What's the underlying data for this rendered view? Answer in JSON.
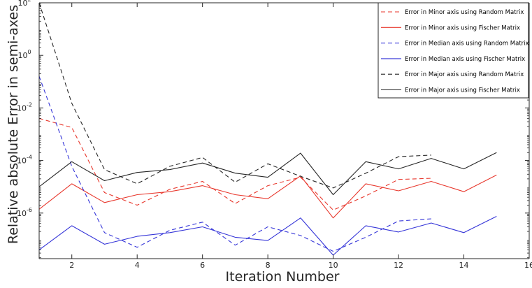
{
  "chart_data": {
    "type": "line",
    "title": "",
    "xlabel": "Iteration Number",
    "ylabel": "Relative absolute Error in semi-axes",
    "xlim": [
      1,
      16
    ],
    "ylim_log10": [
      -8,
      2
    ],
    "yscale": "log",
    "xticks": [
      "2",
      "4",
      "6",
      "8",
      "10",
      "12",
      "14",
      "16"
    ],
    "yticks": [
      {
        "base": "10",
        "exp": "2"
      },
      {
        "base": "10",
        "exp": "0"
      },
      {
        "base": "10",
        "exp": "-2"
      },
      {
        "base": "10",
        "exp": "-4"
      },
      {
        "base": "10",
        "exp": "-6"
      }
    ],
    "legend_placement": "top-right",
    "series": [
      {
        "name": "Error in Minor axis using Random Matrix",
        "color": "#e8372c",
        "dashed": true,
        "x": [
          1,
          2,
          3,
          4,
          5,
          6,
          7,
          8,
          9,
          10,
          11,
          12,
          13
        ],
        "y": [
          0.004,
          0.0018,
          6e-06,
          2e-06,
          8e-06,
          1.6e-05,
          2.3e-06,
          1.1e-05,
          2.3e-05,
          1.3e-06,
          4.5e-06,
          1.9e-05,
          2.1e-05
        ]
      },
      {
        "name": "Error in Minor axis using Fischer Matrix",
        "color": "#e8372c",
        "dashed": false,
        "x": [
          1,
          2,
          3,
          4,
          5,
          6,
          7,
          8,
          9,
          10,
          11,
          12,
          13,
          14,
          15
        ],
        "y": [
          1.4e-06,
          1.3e-05,
          2.5e-06,
          5e-06,
          6.5e-06,
          1.1e-05,
          5e-06,
          3.5e-06,
          2.6e-05,
          6.5e-07,
          1.3e-05,
          7e-06,
          1.6e-05,
          6.5e-06,
          2.8e-05
        ]
      },
      {
        "name": "Error in Median axis using Random Matrix",
        "color": "#3434d8",
        "dashed": true,
        "x": [
          1,
          2,
          3,
          4,
          5,
          6,
          7,
          8,
          9,
          10,
          11,
          12,
          13
        ],
        "y": [
          0.16,
          6e-05,
          1.8e-07,
          5e-08,
          2.2e-07,
          4.5e-07,
          6e-08,
          3e-07,
          1.4e-07,
          3.5e-08,
          1.2e-07,
          5e-07,
          6e-07
        ]
      },
      {
        "name": "Error in Median axis using Fischer Matrix",
        "color": "#3434d8",
        "dashed": false,
        "x": [
          1,
          2,
          3,
          4,
          5,
          6,
          7,
          8,
          9,
          10,
          11,
          12,
          13,
          14,
          15
        ],
        "y": [
          4e-08,
          3.3e-07,
          6.5e-08,
          1.3e-07,
          1.8e-07,
          3e-07,
          1.2e-07,
          9e-08,
          6.5e-07,
          2.5e-08,
          3.3e-07,
          1.9e-07,
          4.2e-07,
          1.8e-07,
          7.5e-07
        ]
      },
      {
        "name": "Error in Major axis using Random Matrix",
        "color": "#262626",
        "dashed": true,
        "x": [
          1,
          2,
          3,
          4,
          5,
          6,
          7,
          8,
          9,
          10,
          11,
          12,
          13
        ],
        "y": [
          100,
          0.015,
          4.5e-05,
          1.3e-05,
          6e-05,
          0.00013,
          1.5e-05,
          7.5e-05,
          2.5e-05,
          9e-06,
          3.3e-05,
          0.00014,
          0.00016
        ]
      },
      {
        "name": "Error in Major axis using Fischer Matrix",
        "color": "#262626",
        "dashed": false,
        "x": [
          1,
          2,
          3,
          4,
          5,
          6,
          7,
          8,
          9,
          10,
          11,
          12,
          13,
          14,
          15
        ],
        "y": [
          1e-05,
          9e-05,
          1.7e-05,
          3.5e-05,
          4.5e-05,
          8e-05,
          3.3e-05,
          2.3e-05,
          0.00019,
          5e-06,
          9e-05,
          4.8e-05,
          0.00012,
          4.8e-05,
          0.0002
        ]
      }
    ]
  }
}
